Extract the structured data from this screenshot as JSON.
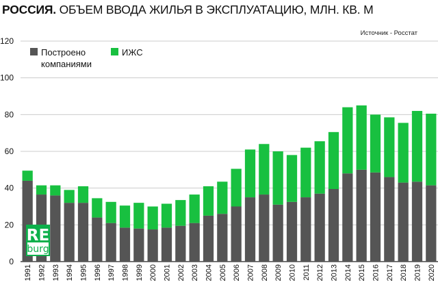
{
  "header": {
    "title_bold": "РОССИЯ.",
    "title_rest": "ОБЪЕМ ВВОДА  ЖИЛЬЯ В ЭКСПЛУАТАЦИЮ, МЛН. КВ. М",
    "source": "Источник - Росстат"
  },
  "logo": {
    "line1": "RE",
    "line2": "burg",
    "color": "#0db04b"
  },
  "chart_data": {
    "type": "bar",
    "stacked": true,
    "title": "РОССИЯ. ОБЪЕМ ВВОДА  ЖИЛЬЯ В ЭКСПЛУАТАЦИЮ, МЛН. КВ. М",
    "xlabel": "",
    "ylabel": "",
    "ylim": [
      0,
      120
    ],
    "yticks": [
      0,
      20,
      40,
      60,
      80,
      100,
      120
    ],
    "grid": true,
    "legend_position": "top-left",
    "categories": [
      "1991",
      "1992",
      "1993",
      "1994",
      "1995",
      "1996",
      "1997",
      "1998",
      "1999",
      "2000",
      "2001",
      "2002",
      "2003",
      "2004",
      "2005",
      "2006",
      "2007",
      "2008",
      "2009",
      "2010",
      "2011",
      "2012",
      "2013",
      "2014",
      "2015",
      "2016",
      "2017",
      "2018",
      "2019",
      "2020"
    ],
    "series": [
      {
        "name": "Построено компаниями",
        "legend_lines": [
          "Построено",
          "компаниями"
        ],
        "color": "#555555",
        "values": [
          44,
          36.5,
          36,
          32,
          32,
          24,
          21,
          18.5,
          18,
          17.5,
          18.5,
          19.5,
          21,
          25,
          26,
          30,
          35,
          36.5,
          31,
          32.5,
          35,
          37,
          39.5,
          48,
          50,
          48.5,
          46,
          43,
          43.5,
          41.5
        ]
      },
      {
        "name": "ИЖС",
        "legend_lines": [
          "ИЖС"
        ],
        "color": "#18c040",
        "values": [
          5.5,
          5,
          5.5,
          7,
          9,
          10.5,
          11.5,
          12,
          14,
          12.5,
          13,
          14,
          15.5,
          16,
          17.5,
          20.5,
          26,
          27.5,
          29,
          25.5,
          27,
          28.5,
          31,
          36,
          35,
          31.5,
          32.5,
          32.5,
          38.5,
          39
        ]
      }
    ]
  }
}
